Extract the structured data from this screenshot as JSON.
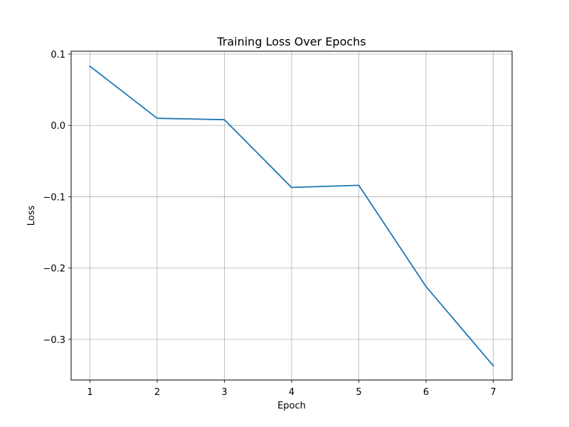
{
  "chart_data": {
    "type": "line",
    "title": "Training Loss Over Epochs",
    "xlabel": "Epoch",
    "ylabel": "Loss",
    "x": [
      1,
      2,
      3,
      4,
      5,
      6,
      7
    ],
    "xticks": [
      "1",
      "2",
      "3",
      "4",
      "5",
      "6",
      "7"
    ],
    "yticks": [
      0.1,
      0.0,
      -0.1,
      -0.2,
      -0.3
    ],
    "ytick_labels": [
      "0.1",
      "0.0",
      "−0.1",
      "−0.2",
      "−0.3"
    ],
    "xlim": [
      0.72,
      7.28
    ],
    "ylim": [
      -0.357,
      0.104
    ],
    "grid": true,
    "series": [
      {
        "values": [
          0.083,
          0.01,
          0.008,
          -0.087,
          -0.084,
          -0.226,
          -0.337
        ],
        "color": "#1f77b4"
      }
    ]
  }
}
